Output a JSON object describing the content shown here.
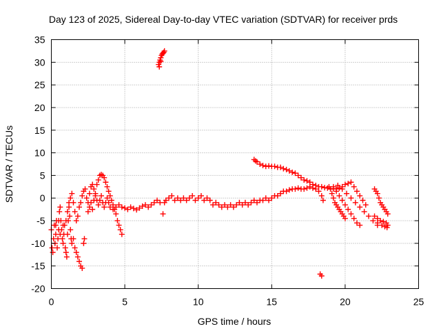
{
  "chart_data": {
    "type": "scatter",
    "title": "Day 123 of 2025, Sidereal Day-to-day VTEC variation (SDTVAR) for receiver prds",
    "xlabel": "GPS time / hours",
    "ylabel": "SDTVAR / TECUs",
    "xlim": [
      0,
      25
    ],
    "ylim": [
      -20,
      35
    ],
    "xticks": [
      "0",
      "5",
      "10",
      "15",
      "20",
      "25"
    ],
    "yticks": [
      "-20",
      "-15",
      "-10",
      "-5",
      "0",
      "5",
      "10",
      "15",
      "20",
      "25",
      "30",
      "35"
    ],
    "grid": true,
    "marker": "+",
    "series": [
      {
        "name": "SDTVAR",
        "color": "#ff0000",
        "points": [
          [
            0.0,
            -7
          ],
          [
            0.05,
            -11
          ],
          [
            0.1,
            -12
          ],
          [
            0.15,
            -9
          ],
          [
            0.2,
            -6
          ],
          [
            0.25,
            -10
          ],
          [
            0.3,
            -8
          ],
          [
            0.35,
            -5
          ],
          [
            0.4,
            -11
          ],
          [
            0.45,
            -9
          ],
          [
            0.5,
            -7
          ],
          [
            0.55,
            -3
          ],
          [
            0.6,
            -2
          ],
          [
            0.65,
            -5
          ],
          [
            0.7,
            -7
          ],
          [
            0.75,
            -9
          ],
          [
            0.8,
            -10
          ],
          [
            0.85,
            -8
          ],
          [
            0.9,
            -6
          ],
          [
            0.95,
            -11
          ],
          [
            1.0,
            -12
          ],
          [
            1.05,
            -13
          ],
          [
            1.1,
            -8
          ],
          [
            1.15,
            -5
          ],
          [
            1.2,
            -2
          ],
          [
            1.25,
            -4
          ],
          [
            1.3,
            -7
          ],
          [
            1.35,
            -9
          ],
          [
            1.4,
            -10
          ],
          [
            1.5,
            -9
          ],
          [
            1.6,
            -11
          ],
          [
            1.7,
            -12
          ],
          [
            1.8,
            -13
          ],
          [
            1.9,
            -14
          ],
          [
            2.0,
            -15
          ],
          [
            2.1,
            -15.5
          ],
          [
            2.2,
            -10
          ],
          [
            2.25,
            -9
          ],
          [
            0.3,
            -6
          ],
          [
            0.5,
            -5
          ],
          [
            0.6,
            -8
          ],
          [
            0.8,
            -6
          ],
          [
            1.0,
            -5
          ],
          [
            1.1,
            -3
          ],
          [
            1.2,
            -1
          ],
          [
            1.3,
            0
          ],
          [
            1.4,
            1
          ],
          [
            1.5,
            -1
          ],
          [
            1.6,
            -3
          ],
          [
            1.7,
            -5
          ],
          [
            1.8,
            -4
          ],
          [
            1.9,
            -2
          ],
          [
            2.0,
            -1
          ],
          [
            2.1,
            0.5
          ],
          [
            2.2,
            1.5
          ],
          [
            2.3,
            2
          ],
          [
            2.4,
            0
          ],
          [
            2.5,
            -1
          ],
          [
            2.6,
            1
          ],
          [
            2.7,
            2.5
          ],
          [
            2.8,
            3
          ],
          [
            2.9,
            2
          ],
          [
            3.0,
            1
          ],
          [
            3.1,
            3
          ],
          [
            3.2,
            4
          ],
          [
            3.3,
            5
          ],
          [
            3.4,
            5.2
          ],
          [
            3.5,
            5
          ],
          [
            3.6,
            4.5
          ],
          [
            3.7,
            3.5
          ],
          [
            3.8,
            2.5
          ],
          [
            3.9,
            1.5
          ],
          [
            4.0,
            0.5
          ],
          [
            4.1,
            -0.5
          ],
          [
            4.2,
            -1.5
          ],
          [
            4.3,
            -2.5
          ],
          [
            4.4,
            -3.5
          ],
          [
            4.5,
            -5
          ],
          [
            4.6,
            -6
          ],
          [
            4.7,
            -7
          ],
          [
            4.8,
            -8
          ],
          [
            2.5,
            -3
          ],
          [
            2.6,
            -2
          ],
          [
            2.7,
            -1
          ],
          [
            2.8,
            -2.5
          ],
          [
            2.9,
            -0.5
          ],
          [
            3.0,
            0.5
          ],
          [
            3.1,
            -0.5
          ],
          [
            3.2,
            -1.5
          ],
          [
            3.3,
            -0.5
          ],
          [
            3.4,
            0.5
          ],
          [
            3.5,
            -1
          ],
          [
            3.6,
            -2
          ],
          [
            3.7,
            -1
          ],
          [
            3.8,
            0
          ],
          [
            3.9,
            -1
          ],
          [
            4.0,
            -2
          ],
          [
            4.2,
            -2.5
          ],
          [
            4.4,
            -2
          ],
          [
            4.6,
            -1.5
          ],
          [
            4.8,
            -2
          ],
          [
            5.0,
            -2.2
          ],
          [
            5.2,
            -2.5
          ],
          [
            5.4,
            -2
          ],
          [
            5.6,
            -2.3
          ],
          [
            5.8,
            -2.6
          ],
          [
            6.0,
            -2.2
          ],
          [
            6.2,
            -1.8
          ],
          [
            6.4,
            -1.5
          ],
          [
            6.6,
            -2
          ],
          [
            6.8,
            -1.5
          ],
          [
            7.0,
            -1
          ],
          [
            7.2,
            -0.5
          ],
          [
            7.4,
            -1
          ],
          [
            7.6,
            -3.5
          ],
          [
            7.7,
            -1
          ],
          [
            7.8,
            -0.5
          ],
          [
            8.0,
            0
          ],
          [
            8.2,
            0.5
          ],
          [
            8.4,
            -0.5
          ],
          [
            8.6,
            0
          ],
          [
            8.8,
            -0.5
          ],
          [
            9.0,
            0
          ],
          [
            9.2,
            -0.5
          ],
          [
            9.4,
            0
          ],
          [
            9.6,
            0.5
          ],
          [
            9.8,
            -0.5
          ],
          [
            10.0,
            0
          ],
          [
            10.2,
            0.5
          ],
          [
            10.4,
            -0.5
          ],
          [
            10.6,
            0
          ],
          [
            10.8,
            -0.5
          ],
          [
            11.0,
            -1.5
          ],
          [
            11.2,
            -1
          ],
          [
            11.4,
            -1.5
          ],
          [
            11.6,
            -2
          ],
          [
            11.8,
            -1.5
          ],
          [
            12.0,
            -2
          ],
          [
            12.2,
            -1.5
          ],
          [
            12.4,
            -2
          ],
          [
            12.6,
            -1.5
          ],
          [
            12.8,
            -1
          ],
          [
            13.0,
            -1.5
          ],
          [
            13.2,
            -1
          ],
          [
            13.4,
            -1.5
          ],
          [
            13.6,
            -1
          ],
          [
            13.8,
            -0.5
          ],
          [
            14.0,
            -1
          ],
          [
            14.2,
            -0.5
          ],
          [
            14.4,
            -0.5
          ],
          [
            14.6,
            0
          ],
          [
            14.8,
            -0.5
          ],
          [
            15.0,
            0
          ],
          [
            15.2,
            0.5
          ],
          [
            15.4,
            0.5
          ],
          [
            15.6,
            1
          ],
          [
            15.8,
            1.5
          ],
          [
            16.0,
            1.5
          ],
          [
            16.2,
            1.8
          ],
          [
            16.4,
            2
          ],
          [
            16.6,
            2
          ],
          [
            16.8,
            2.2
          ],
          [
            17.0,
            2
          ],
          [
            17.2,
            2
          ],
          [
            17.4,
            2.2
          ],
          [
            17.6,
            2.5
          ],
          [
            17.8,
            2.2
          ],
          [
            18.0,
            2
          ],
          [
            18.2,
            1.5
          ],
          [
            18.4,
            0.5
          ],
          [
            18.5,
            -0.5
          ],
          [
            7.3,
            29.5
          ],
          [
            7.35,
            30
          ],
          [
            7.4,
            30.5
          ],
          [
            7.45,
            31
          ],
          [
            7.5,
            31.5
          ],
          [
            7.55,
            31.8
          ],
          [
            7.6,
            32
          ],
          [
            7.65,
            32.2
          ],
          [
            7.7,
            32.5
          ],
          [
            7.35,
            29
          ],
          [
            7.45,
            30.2
          ],
          [
            13.8,
            8.5
          ],
          [
            13.9,
            8.2
          ],
          [
            14.0,
            8
          ],
          [
            14.2,
            7.5
          ],
          [
            14.4,
            7.2
          ],
          [
            14.6,
            7
          ],
          [
            14.8,
            7.1
          ],
          [
            15.0,
            7
          ],
          [
            15.2,
            7
          ],
          [
            15.4,
            6.8
          ],
          [
            15.6,
            6.8
          ],
          [
            15.8,
            6.5
          ],
          [
            16.0,
            6.3
          ],
          [
            16.2,
            6
          ],
          [
            16.4,
            5.7
          ],
          [
            16.6,
            5.5
          ],
          [
            16.8,
            5
          ],
          [
            17.0,
            4.5
          ],
          [
            17.2,
            4
          ],
          [
            17.4,
            3.8
          ],
          [
            17.6,
            3.5
          ],
          [
            17.8,
            3
          ],
          [
            18.0,
            2.8
          ],
          [
            18.2,
            2.5
          ],
          [
            18.4,
            2.5
          ],
          [
            18.6,
            2.3
          ],
          [
            18.8,
            2.2
          ],
          [
            19.0,
            2
          ],
          [
            19.2,
            2.1
          ],
          [
            19.4,
            2
          ],
          [
            19.6,
            2.2
          ],
          [
            18.9,
            2.5
          ],
          [
            19.0,
            2
          ],
          [
            19.1,
            1
          ],
          [
            19.2,
            0
          ],
          [
            19.3,
            -1
          ],
          [
            19.4,
            -1.5
          ],
          [
            19.5,
            -2
          ],
          [
            19.6,
            -2.5
          ],
          [
            19.7,
            -3
          ],
          [
            19.8,
            -3.5
          ],
          [
            19.9,
            -4
          ],
          [
            20.0,
            -4.5
          ],
          [
            19.2,
            2.5
          ],
          [
            19.4,
            1.5
          ],
          [
            19.6,
            0.5
          ],
          [
            19.8,
            -0.5
          ],
          [
            20.0,
            -1.5
          ],
          [
            20.2,
            -2.5
          ],
          [
            20.4,
            -3.5
          ],
          [
            20.6,
            -4.5
          ],
          [
            20.8,
            -5.5
          ],
          [
            21.0,
            -6
          ],
          [
            19.5,
            2.8
          ],
          [
            19.8,
            2
          ],
          [
            20.1,
            1
          ],
          [
            20.4,
            0
          ],
          [
            20.7,
            -1
          ],
          [
            21.0,
            -2
          ],
          [
            21.3,
            -3
          ],
          [
            21.6,
            -4
          ],
          [
            21.9,
            -5
          ],
          [
            22.2,
            -6
          ],
          [
            19.8,
            2.5
          ],
          [
            20.0,
            3
          ],
          [
            20.2,
            3.2
          ],
          [
            20.4,
            3.5
          ],
          [
            20.6,
            2.5
          ],
          [
            20.8,
            1.5
          ],
          [
            21.0,
            0.5
          ],
          [
            21.2,
            -0.5
          ],
          [
            21.4,
            -1.5
          ],
          [
            22.0,
            2
          ],
          [
            22.1,
            1.5
          ],
          [
            22.2,
            1
          ],
          [
            22.3,
            0
          ],
          [
            22.4,
            -1
          ],
          [
            22.5,
            -1.5
          ],
          [
            22.6,
            -2
          ],
          [
            22.7,
            -2.5
          ],
          [
            22.8,
            -3
          ],
          [
            22.9,
            -3.5
          ],
          [
            22.0,
            -4
          ],
          [
            22.2,
            -4.5
          ],
          [
            22.4,
            -5
          ],
          [
            22.6,
            -5.2
          ],
          [
            22.8,
            -5.5
          ],
          [
            22.9,
            -6
          ],
          [
            22.2,
            -5.5
          ],
          [
            22.5,
            -6
          ],
          [
            22.7,
            -6.3
          ],
          [
            22.85,
            -6.5
          ],
          [
            18.3,
            -16.8
          ],
          [
            18.4,
            -17.2
          ]
        ]
      }
    ]
  }
}
